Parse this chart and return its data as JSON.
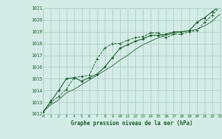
{
  "bg_color": "#d4ece6",
  "grid_color": "#afd0c8",
  "line_color": "#1a5c2a",
  "title": "Graphe pression niveau de la mer (hPa)",
  "xlim": [
    0,
    23
  ],
  "ylim": [
    1012,
    1021
  ],
  "xticks": [
    0,
    1,
    2,
    3,
    4,
    5,
    6,
    7,
    8,
    9,
    10,
    11,
    12,
    13,
    14,
    15,
    16,
    17,
    18,
    19,
    20,
    21,
    22,
    23
  ],
  "yticks": [
    1012,
    1013,
    1014,
    1015,
    1016,
    1017,
    1018,
    1019,
    1020,
    1021
  ],
  "series1_x": [
    0,
    1,
    2,
    3,
    4,
    5,
    6,
    7,
    8,
    9,
    10,
    11,
    12,
    13,
    14,
    15,
    16,
    17,
    18,
    19,
    20,
    21,
    22,
    23
  ],
  "series1_y": [
    1012.2,
    1013.0,
    1013.5,
    1014.1,
    1015.1,
    1015.2,
    1015.3,
    1016.7,
    1017.6,
    1018.0,
    1018.0,
    1018.3,
    1018.5,
    1018.6,
    1018.9,
    1018.9,
    1018.5,
    1018.8,
    1018.8,
    1019.0,
    1019.1,
    1019.8,
    1020.4,
    1021.1
  ],
  "series2_x": [
    0,
    1,
    2,
    3,
    4,
    5,
    6,
    7,
    8,
    9,
    10,
    11,
    12,
    13,
    14,
    15,
    16,
    17,
    18,
    19,
    20,
    21,
    22,
    23
  ],
  "series2_y": [
    1012.2,
    1013.1,
    1014.0,
    1015.0,
    1015.1,
    1014.8,
    1015.1,
    1015.4,
    1016.0,
    1016.8,
    1017.6,
    1017.9,
    1018.2,
    1018.4,
    1018.7,
    1018.7,
    1018.8,
    1019.0,
    1019.0,
    1019.1,
    1019.8,
    1020.2,
    1020.7,
    1021.2
  ],
  "series3_x": [
    0,
    1,
    2,
    3,
    4,
    5,
    6,
    7,
    8,
    9,
    10,
    11,
    12,
    13,
    14,
    15,
    16,
    17,
    18,
    19,
    20,
    21,
    22,
    23
  ],
  "series3_y": [
    1012.2,
    1012.8,
    1013.2,
    1013.8,
    1014.1,
    1014.5,
    1014.9,
    1015.3,
    1015.7,
    1016.1,
    1016.6,
    1017.0,
    1017.5,
    1017.9,
    1018.2,
    1018.5,
    1018.7,
    1018.9,
    1019.0,
    1019.1,
    1019.2,
    1019.5,
    1019.9,
    1020.5
  ]
}
